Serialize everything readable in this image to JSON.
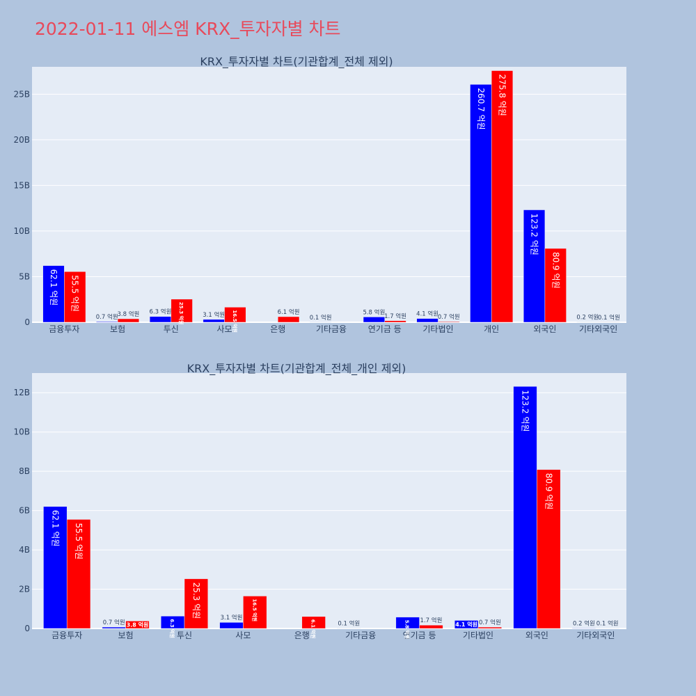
{
  "page": {
    "title": "2022-01-11 에스엠 KRX_투자자별 차트"
  },
  "colors": {
    "background": "#b0c4de",
    "plot_bg": "#e5ecf6",
    "title": "#e8495a",
    "buy": "#0000ff",
    "sell": "#ff0000",
    "grid": "#ffffff",
    "text": "#2a3f5f"
  },
  "chart_data": [
    {
      "type": "bar",
      "title": "KRX_투자자별 차트(기관합계_전체 제외)",
      "categories": [
        "금융투자",
        "보험",
        "투신",
        "사모",
        "은행",
        "기타금융",
        "연기금 등",
        "기타법인",
        "개인",
        "외국인",
        "기타외국인"
      ],
      "ylim": [
        0,
        28000000000
      ],
      "yticks": [
        0,
        5000000000,
        10000000000,
        15000000000,
        20000000000,
        25000000000
      ],
      "ytick_labels": [
        "0",
        "5B",
        "10B",
        "15B",
        "20B",
        "25B"
      ],
      "grid": true,
      "series": [
        {
          "color": "#0000ff",
          "values": [
            6210000000,
            70000000,
            630000000,
            310000000,
            0,
            10000000,
            580000000,
            410000000,
            26070000000,
            12320000000,
            20000000
          ],
          "labels": [
            "62.1 억원",
            "0.7 억원",
            "6.3 억원",
            "3.1 억원",
            "",
            "0.1 억원",
            "5.8 억원",
            "4.1 억원",
            "260.7 억원",
            "123.2 억원",
            "0.2 억원"
          ]
        },
        {
          "color": "#ff0000",
          "values": [
            5550000000,
            380000000,
            2530000000,
            1650000000,
            610000000,
            0,
            170000000,
            70000000,
            27580000000,
            8090000000,
            10000000
          ],
          "labels": [
            "55.5 억원",
            "3.8 억원",
            "25.3 억원",
            "16.5 억원",
            "6.1 억원",
            "",
            "1.7 억원",
            "0.7 억원",
            "275.8 억원",
            "80.9 억원",
            "0.1 억원"
          ]
        }
      ]
    },
    {
      "type": "bar",
      "title": "KRX_투자자별 차트(기관합계_전체_개인 제외)",
      "categories": [
        "금융투자",
        "보험",
        "투신",
        "사모",
        "은행",
        "기타금융",
        "연기금 등",
        "기타법인",
        "외국인",
        "기타외국인"
      ],
      "ylim": [
        0,
        13000000000
      ],
      "yticks": [
        0,
        2000000000,
        4000000000,
        6000000000,
        8000000000,
        10000000000,
        12000000000
      ],
      "ytick_labels": [
        "0",
        "2B",
        "4B",
        "6B",
        "8B",
        "10B",
        "12B"
      ],
      "grid": true,
      "series": [
        {
          "color": "#0000ff",
          "values": [
            6210000000,
            70000000,
            630000000,
            310000000,
            0,
            10000000,
            580000000,
            410000000,
            12320000000,
            20000000
          ],
          "labels": [
            "62.1 억원",
            "0.7 억원",
            "6.3 억원",
            "3.1 억원",
            "",
            "0.1 억원",
            "5.8 억원",
            "4.1 억원",
            "123.2 억원",
            "0.2 억원"
          ]
        },
        {
          "color": "#ff0000",
          "values": [
            5550000000,
            380000000,
            2530000000,
            1650000000,
            610000000,
            0,
            170000000,
            70000000,
            8090000000,
            10000000
          ],
          "labels": [
            "55.5 억원",
            "3.8 억원",
            "25.3 억원",
            "16.5 억원",
            "6.1 억원",
            "",
            "1.7 억원",
            "0.7 억원",
            "80.9 억원",
            "0.1 억원"
          ]
        }
      ]
    }
  ]
}
